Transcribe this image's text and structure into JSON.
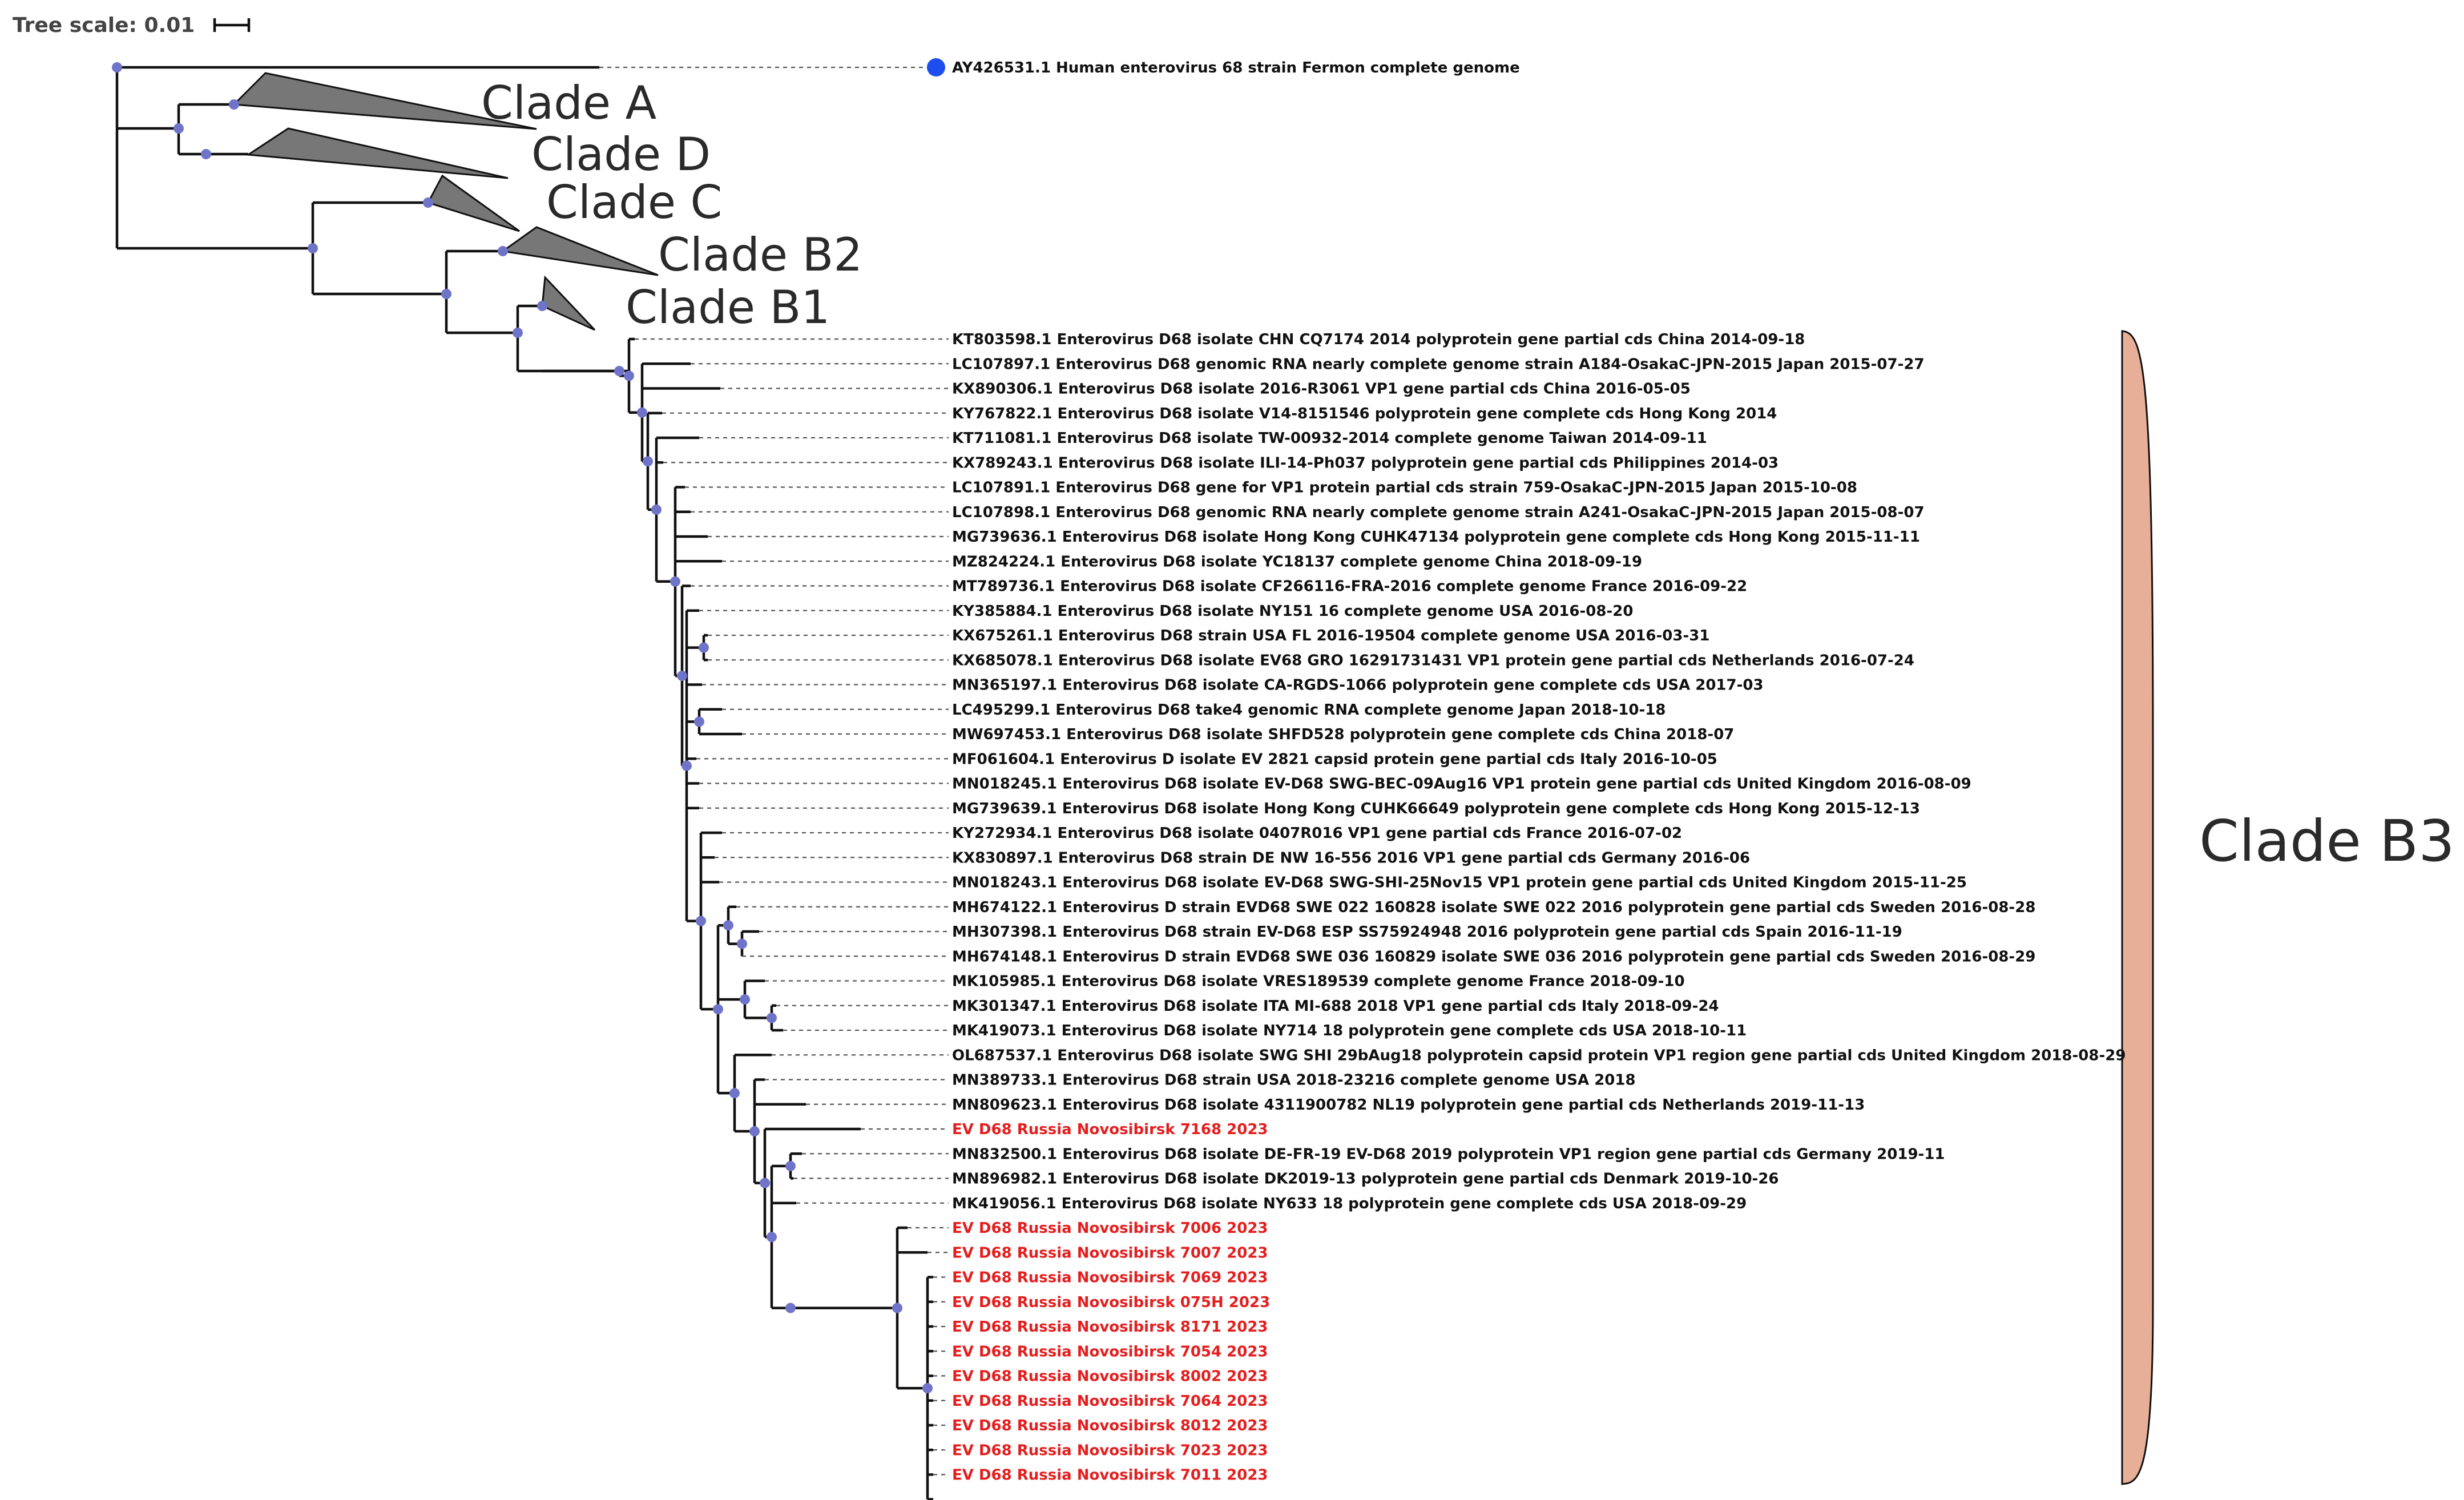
{
  "tree_scale": {
    "label": "Tree scale: 0.01"
  },
  "outgroup": {
    "label": "AY426531.1 Human enterovirus 68 strain Fermon complete genome",
    "marker_color": "#1f4ef0"
  },
  "collapsed_clades": [
    {
      "id": "a",
      "label": "Clade A"
    },
    {
      "id": "d",
      "label": "Clade D"
    },
    {
      "id": "c",
      "label": "Clade C"
    },
    {
      "id": "b2",
      "label": "Clade B2"
    },
    {
      "id": "b1",
      "label": "Clade B1"
    }
  ],
  "highlight_clade": {
    "label": "Clade B3",
    "color": "#e8af98"
  },
  "colors": {
    "reference": "#111111",
    "study": "#e41e1e",
    "node": "#6f74c9"
  },
  "leaves": [
    {
      "label": "KT803598.1 Enterovirus D68 isolate CHN CQ7174 2014 polyprotein gene partial cds China 2014-09-18",
      "study": false
    },
    {
      "label": "LC107897.1 Enterovirus D68 genomic RNA nearly complete genome strain  A184-OsakaC-JPN-2015 Japan 2015-07-27",
      "study": false
    },
    {
      "label": "KX890306.1 Enterovirus D68 isolate 2016-R3061 VP1 gene partial cds China 2016-05-05",
      "study": false
    },
    {
      "label": "KY767822.1 Enterovirus D68 isolate V14-8151546 polyprotein gene complete cds Hong Kong 2014",
      "study": false
    },
    {
      "label": "KT711081.1 Enterovirus D68 isolate TW-00932-2014 complete genome Taiwan 2014-09-11",
      "study": false
    },
    {
      "label": "KX789243.1 Enterovirus D68 isolate ILI-14-Ph037 polyprotein gene partial cds Philippines 2014-03",
      "study": false
    },
    {
      "label": "LC107891.1 Enterovirus D68 gene for VP1 protein partial cds strain  759-OsakaC-JPN-2015 Japan 2015-10-08",
      "study": false
    },
    {
      "label": "LC107898.1 Enterovirus D68 genomic RNA nearly complete genome strain  A241-OsakaC-JPN-2015 Japan 2015-08-07",
      "study": false
    },
    {
      "label": "MG739636.1 Enterovirus D68 isolate Hong Kong CUHK47134 polyprotein gene complete cds Hong Kong 2015-11-11",
      "study": false
    },
    {
      "label": "MZ824224.1 Enterovirus D68 isolate YC18137 complete genome China 2018-09-19",
      "study": false
    },
    {
      "label": "MT789736.1 Enterovirus D68 isolate CF266116-FRA-2016 complete genome France 2016-09-22",
      "study": false
    },
    {
      "label": "KY385884.1 Enterovirus D68 isolate NY151 16 complete genome USA 2016-08-20",
      "study": false
    },
    {
      "label": "KX675261.1 Enterovirus D68 strain USA FL 2016-19504 complete genome USA 2016-03-31",
      "study": false
    },
    {
      "label": "KX685078.1 Enterovirus D68 isolate EV68 GRO 16291731431 VP1 protein gene partial cds Netherlands 2016-07-24",
      "study": false
    },
    {
      "label": "MN365197.1 Enterovirus D68 isolate CA-RGDS-1066 polyprotein gene complete cds USA 2017-03",
      "study": false
    },
    {
      "label": "LC495299.1 Enterovirus D68 take4 genomic RNA complete genome Japan 2018-10-18",
      "study": false
    },
    {
      "label": "MW697453.1 Enterovirus D68 isolate SHFD528 polyprotein gene complete cds China 2018-07",
      "study": false
    },
    {
      "label": "MF061604.1 Enterovirus D isolate EV 2821 capsid protein gene partial cds Italy 2016-10-05",
      "study": false
    },
    {
      "label": "MN018245.1 Enterovirus D68 isolate EV-D68 SWG-BEC-09Aug16 VP1 protein gene partial cds United Kingdom 2016-08-09",
      "study": false
    },
    {
      "label": "MG739639.1 Enterovirus D68 isolate Hong Kong CUHK66649 polyprotein gene complete cds Hong Kong 2015-12-13",
      "study": false
    },
    {
      "label": "KY272934.1 Enterovirus D68 isolate 0407R016 VP1 gene partial cds France 2016-07-02",
      "study": false
    },
    {
      "label": "KX830897.1 Enterovirus D68 strain DE NW 16-556 2016 VP1 gene partial cds Germany 2016-06",
      "study": false
    },
    {
      "label": "MN018243.1 Enterovirus D68 isolate EV-D68 SWG-SHI-25Nov15 VP1 protein gene partial cds United Kingdom 2015-11-25",
      "study": false
    },
    {
      "label": "MH674122.1 Enterovirus D strain EVD68 SWE 022 160828 isolate SWE 022 2016 polyprotein gene partial cds Sweden 2016-08-28",
      "study": false
    },
    {
      "label": "MH307398.1 Enterovirus D68 strain EV-D68 ESP SS75924948 2016 polyprotein gene partial cds Spain 2016-11-19",
      "study": false
    },
    {
      "label": "MH674148.1 Enterovirus D strain EVD68 SWE 036 160829 isolate SWE 036 2016 polyprotein gene partial cds Sweden 2016-08-29",
      "study": false
    },
    {
      "label": "MK105985.1 Enterovirus D68 isolate VRES189539 complete genome France 2018-09-10",
      "study": false
    },
    {
      "label": "MK301347.1 Enterovirus D68 isolate ITA MI-688 2018 VP1 gene partial cds Italy 2018-09-24",
      "study": false
    },
    {
      "label": "MK419073.1 Enterovirus D68 isolate NY714 18 polyprotein gene complete cds USA 2018-10-11",
      "study": false
    },
    {
      "label": "OL687537.1 Enterovirus D68 isolate SWG SHI 29bAug18 polyprotein capsid protein VP1 region gene partial cds United Kingdom 2018-08-29",
      "study": false
    },
    {
      "label": "MN389733.1 Enterovirus D68 strain USA 2018-23216 complete genome USA 2018",
      "study": false
    },
    {
      "label": "MN809623.1 Enterovirus D68 isolate 4311900782 NL19 polyprotein gene partial cds Netherlands 2019-11-13",
      "study": false
    },
    {
      "label": "EV D68 Russia Novosibirsk 7168 2023",
      "study": true
    },
    {
      "label": "MN832500.1 Enterovirus D68 isolate DE-FR-19 EV-D68 2019 polyprotein VP1 region gene partial cds Germany 2019-11",
      "study": false
    },
    {
      "label": "MN896982.1 Enterovirus D68 isolate DK2019-13 polyprotein gene partial cds Denmark 2019-10-26",
      "study": false
    },
    {
      "label": "MK419056.1 Enterovirus D68 isolate NY633 18 polyprotein gene complete cds USA 2018-09-29",
      "study": false
    },
    {
      "label": "EV D68 Russia Novosibirsk 7006 2023",
      "study": true
    },
    {
      "label": "EV D68 Russia Novosibirsk 7007 2023",
      "study": true
    },
    {
      "label": "EV D68 Russia Novosibirsk 7069 2023",
      "study": true
    },
    {
      "label": "EV D68 Russia Novosibirsk 075H 2023",
      "study": true
    },
    {
      "label": "EV D68 Russia Novosibirsk 8171 2023",
      "study": true
    },
    {
      "label": "EV D68 Russia Novosibirsk 7054 2023",
      "study": true
    },
    {
      "label": "EV D68 Russia Novosibirsk 8002 2023",
      "study": true
    },
    {
      "label": "EV D68 Russia Novosibirsk 7064 2023",
      "study": true
    },
    {
      "label": "EV D68 Russia Novosibirsk 8012 2023",
      "study": true
    },
    {
      "label": "EV D68 Russia Novosibirsk 7023 2023",
      "study": true
    },
    {
      "label": "EV D68 Russia Novosibirsk 7011 2023",
      "study": true
    }
  ]
}
